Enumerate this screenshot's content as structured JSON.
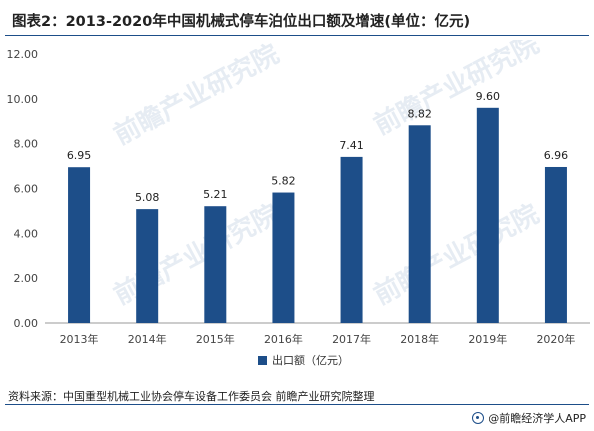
{
  "header": {
    "title": "图表2：2013-2020年中国机械式停车泊位出口额及增速(单位：亿元)"
  },
  "chart_data": {
    "type": "bar",
    "categories": [
      "2013年",
      "2014年",
      "2015年",
      "2016年",
      "2017年",
      "2018年",
      "2019年",
      "2020年"
    ],
    "series": [
      {
        "name": "出口额（亿元）",
        "values": [
          6.95,
          5.08,
          5.21,
          5.82,
          7.41,
          8.82,
          9.6,
          6.96
        ]
      }
    ],
    "data_labels": [
      "6.95",
      "5.08",
      "5.21",
      "5.82",
      "7.41",
      "8.82",
      "9.60",
      "6.96"
    ],
    "y_ticks": [
      "0.00",
      "2.00",
      "4.00",
      "6.00",
      "8.00",
      "10.00",
      "12.00"
    ],
    "ylim": [
      0,
      12
    ],
    "grid": false,
    "legend_position": "bottom-center",
    "bar_color": "#1d4e89"
  },
  "footer": {
    "source": "资料来源：中国重型机械工业协会停车设备工作委员会 前瞻产业研究院整理",
    "brand": "@前瞻经济学人APP"
  },
  "watermark": "前瞻产业研究院"
}
